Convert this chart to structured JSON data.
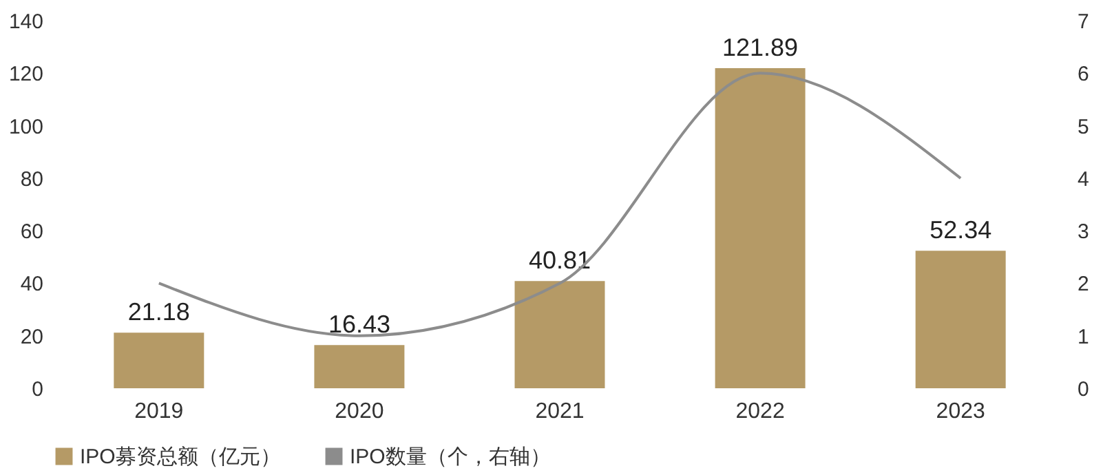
{
  "chart_data": {
    "type": "bar",
    "categories": [
      "2019",
      "2020",
      "2021",
      "2022",
      "2023"
    ],
    "series": [
      {
        "name": "IPO募资总额（亿元）",
        "color": "#b59a66",
        "values": [
          21.18,
          16.43,
          40.81,
          121.89,
          52.34
        ],
        "value_labels": [
          "21.18",
          "16.43",
          "40.81",
          "121.89",
          "52.34"
        ]
      },
      {
        "name": "IPO数量（个，右轴）",
        "type": "line",
        "axis": "y2",
        "color": "#8c8c8c",
        "values": [
          2,
          1,
          2,
          6,
          4
        ]
      }
    ],
    "ylim": [
      0,
      140
    ],
    "yticks": [
      0,
      20,
      40,
      60,
      80,
      100,
      120,
      140
    ],
    "y2lim": [
      0,
      7
    ],
    "y2ticks": [
      0,
      1,
      2,
      3,
      4,
      5,
      6,
      7
    ],
    "grid": false,
    "legend": "bottom",
    "marker": "none",
    "line_style": "solid"
  }
}
